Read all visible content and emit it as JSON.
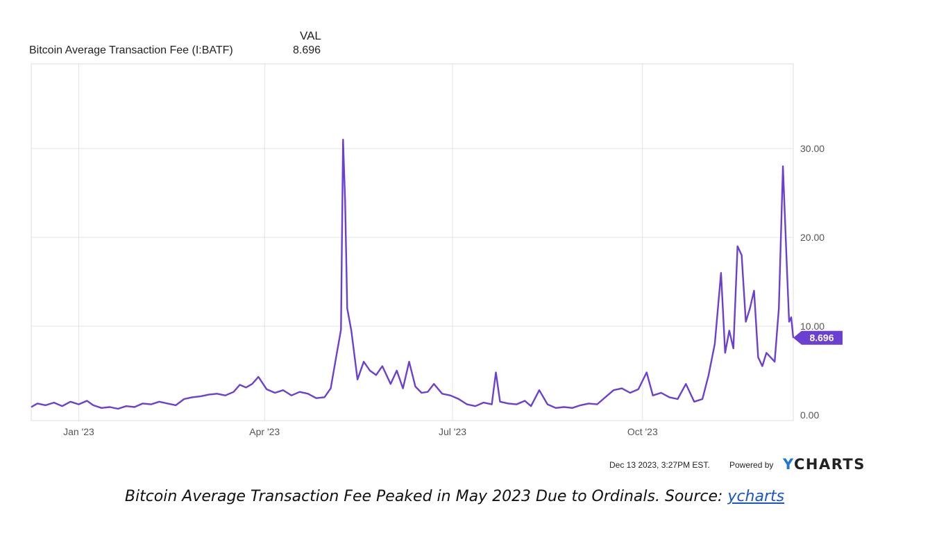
{
  "legend": {
    "header": "VAL",
    "series_name": "Bitcoin Average Transaction Fee (I:BATF)",
    "series_value": "8.696"
  },
  "footer": {
    "timestamp": "Dec 13 2023, 3:27PM EST.",
    "powered_by": "Powered by",
    "logo_y": "Y",
    "logo_rest": "CHARTS"
  },
  "caption": {
    "text": "Bitcoin Average Transaction Fee Peaked in May 2023 Due to Ordinals. Source: ",
    "link": "ycharts"
  },
  "colors": {
    "line": "#6a3fd1",
    "badge": "#6a3fd1",
    "grid": "#e3e3e3",
    "axis_text": "#555555"
  },
  "chart_data": {
    "type": "line",
    "title": "",
    "xlabel": "",
    "ylabel": "",
    "grid": true,
    "ylim": [
      0,
      40
    ],
    "yticks": [
      {
        "value": 0,
        "label": "0.00"
      },
      {
        "value": 10,
        "label": "10.00"
      },
      {
        "value": 20,
        "label": "20.00"
      },
      {
        "value": 30,
        "label": "30.00"
      }
    ],
    "xlim": [
      "2022-12-09",
      "2023-12-13"
    ],
    "xticks": [
      {
        "value": "2023-01-01",
        "label": "Jan '23"
      },
      {
        "value": "2023-04-01",
        "label": "Apr '23"
      },
      {
        "value": "2023-07-01",
        "label": "Jul '23"
      },
      {
        "value": "2023-10-01",
        "label": "Oct '23"
      }
    ],
    "last_value_label": "8.696",
    "series": [
      {
        "name": "Bitcoin Average Transaction Fee (I:BATF)",
        "points": [
          [
            "2022-12-09",
            0.9
          ],
          [
            "2022-12-12",
            1.3
          ],
          [
            "2022-12-16",
            1.1
          ],
          [
            "2022-12-20",
            1.4
          ],
          [
            "2022-12-24",
            1.0
          ],
          [
            "2022-12-28",
            1.5
          ],
          [
            "2023-01-01",
            1.2
          ],
          [
            "2023-01-05",
            1.6
          ],
          [
            "2023-01-08",
            1.1
          ],
          [
            "2023-01-12",
            0.8
          ],
          [
            "2023-01-16",
            0.9
          ],
          [
            "2023-01-20",
            0.7
          ],
          [
            "2023-01-24",
            1.0
          ],
          [
            "2023-01-28",
            0.9
          ],
          [
            "2023-02-01",
            1.3
          ],
          [
            "2023-02-05",
            1.2
          ],
          [
            "2023-02-09",
            1.5
          ],
          [
            "2023-02-13",
            1.3
          ],
          [
            "2023-02-17",
            1.1
          ],
          [
            "2023-02-21",
            1.8
          ],
          [
            "2023-02-25",
            2.0
          ],
          [
            "2023-03-01",
            2.1
          ],
          [
            "2023-03-05",
            2.3
          ],
          [
            "2023-03-09",
            2.4
          ],
          [
            "2023-03-13",
            2.2
          ],
          [
            "2023-03-17",
            2.6
          ],
          [
            "2023-03-20",
            3.4
          ],
          [
            "2023-03-23",
            3.1
          ],
          [
            "2023-03-26",
            3.5
          ],
          [
            "2023-03-29",
            4.3
          ],
          [
            "2023-04-02",
            2.9
          ],
          [
            "2023-04-06",
            2.5
          ],
          [
            "2023-04-10",
            2.8
          ],
          [
            "2023-04-14",
            2.2
          ],
          [
            "2023-04-18",
            2.6
          ],
          [
            "2023-04-22",
            2.4
          ],
          [
            "2023-04-26",
            1.9
          ],
          [
            "2023-04-30",
            2.0
          ],
          [
            "2023-05-03",
            3.0
          ],
          [
            "2023-05-06",
            7.0
          ],
          [
            "2023-05-08",
            9.6
          ],
          [
            "2023-05-09",
            31.0
          ],
          [
            "2023-05-10",
            24.0
          ],
          [
            "2023-05-11",
            12.0
          ],
          [
            "2023-05-13",
            9.5
          ],
          [
            "2023-05-16",
            4.0
          ],
          [
            "2023-05-19",
            6.0
          ],
          [
            "2023-05-22",
            5.0
          ],
          [
            "2023-05-25",
            4.5
          ],
          [
            "2023-05-28",
            5.5
          ],
          [
            "2023-06-01",
            3.5
          ],
          [
            "2023-06-04",
            5.0
          ],
          [
            "2023-06-07",
            3.0
          ],
          [
            "2023-06-10",
            6.0
          ],
          [
            "2023-06-13",
            3.2
          ],
          [
            "2023-06-16",
            2.5
          ],
          [
            "2023-06-19",
            2.6
          ],
          [
            "2023-06-22",
            3.5
          ],
          [
            "2023-06-26",
            2.4
          ],
          [
            "2023-06-30",
            2.2
          ],
          [
            "2023-07-04",
            1.8
          ],
          [
            "2023-07-08",
            1.2
          ],
          [
            "2023-07-12",
            1.0
          ],
          [
            "2023-07-16",
            1.4
          ],
          [
            "2023-07-20",
            1.2
          ],
          [
            "2023-07-22",
            4.8
          ],
          [
            "2023-07-24",
            1.5
          ],
          [
            "2023-07-28",
            1.3
          ],
          [
            "2023-08-01",
            1.2
          ],
          [
            "2023-08-05",
            1.6
          ],
          [
            "2023-08-08",
            1.0
          ],
          [
            "2023-08-12",
            2.8
          ],
          [
            "2023-08-16",
            1.2
          ],
          [
            "2023-08-20",
            0.8
          ],
          [
            "2023-08-24",
            0.9
          ],
          [
            "2023-08-28",
            0.8
          ],
          [
            "2023-09-01",
            1.1
          ],
          [
            "2023-09-05",
            1.3
          ],
          [
            "2023-09-09",
            1.2
          ],
          [
            "2023-09-13",
            2.0
          ],
          [
            "2023-09-17",
            2.8
          ],
          [
            "2023-09-21",
            3.0
          ],
          [
            "2023-09-25",
            2.5
          ],
          [
            "2023-09-29",
            2.9
          ],
          [
            "2023-10-03",
            4.8
          ],
          [
            "2023-10-06",
            2.2
          ],
          [
            "2023-10-10",
            2.5
          ],
          [
            "2023-10-14",
            2.0
          ],
          [
            "2023-10-18",
            1.8
          ],
          [
            "2023-10-22",
            3.5
          ],
          [
            "2023-10-26",
            1.5
          ],
          [
            "2023-10-30",
            1.8
          ],
          [
            "2023-11-02",
            4.5
          ],
          [
            "2023-11-05",
            8.0
          ],
          [
            "2023-11-08",
            16.0
          ],
          [
            "2023-11-10",
            7.0
          ],
          [
            "2023-11-12",
            9.5
          ],
          [
            "2023-11-14",
            7.5
          ],
          [
            "2023-11-16",
            19.0
          ],
          [
            "2023-11-18",
            18.0
          ],
          [
            "2023-11-20",
            10.5
          ],
          [
            "2023-11-22",
            12.0
          ],
          [
            "2023-11-24",
            14.0
          ],
          [
            "2023-11-26",
            6.5
          ],
          [
            "2023-11-28",
            5.5
          ],
          [
            "2023-11-30",
            7.0
          ],
          [
            "2023-12-02",
            6.5
          ],
          [
            "2023-12-04",
            6.0
          ],
          [
            "2023-12-06",
            12.0
          ],
          [
            "2023-12-08",
            28.0
          ],
          [
            "2023-12-10",
            16.0
          ],
          [
            "2023-12-11",
            10.5
          ],
          [
            "2023-12-12",
            11.0
          ],
          [
            "2023-12-13",
            8.696
          ]
        ]
      }
    ]
  }
}
